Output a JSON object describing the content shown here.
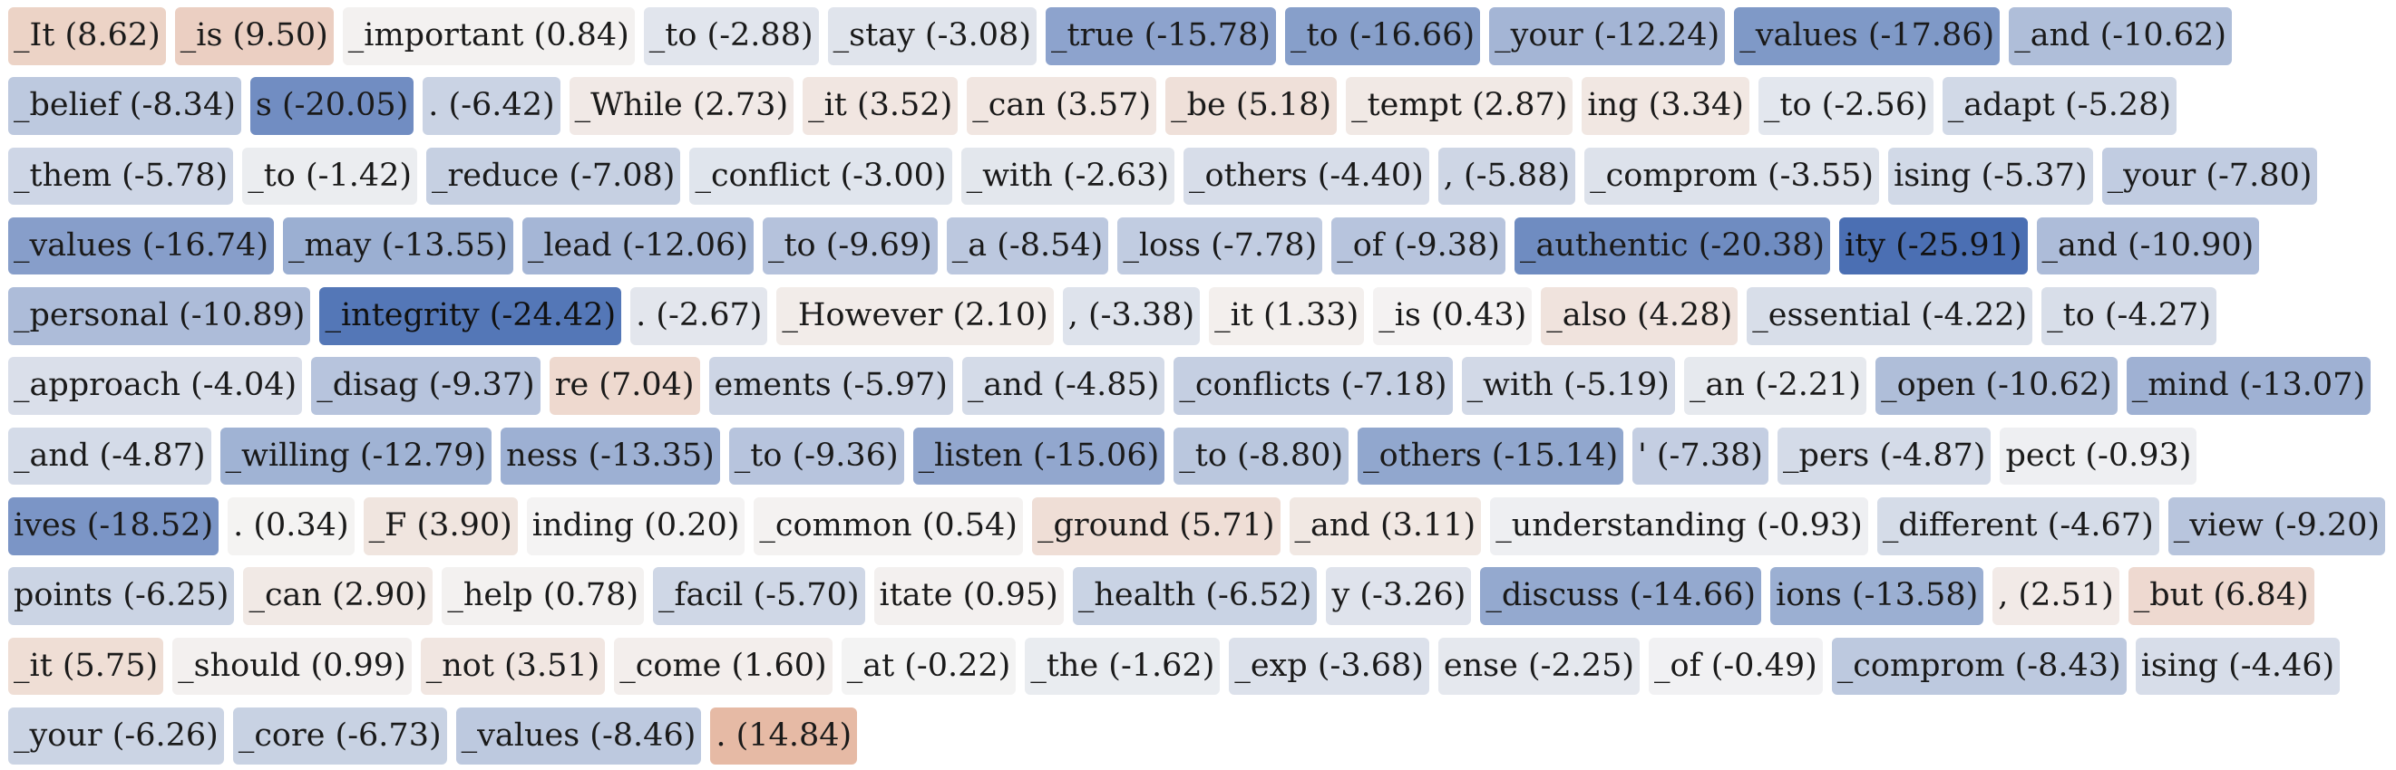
{
  "palette": {
    "neg_dark": "#4a6fb3",
    "pos_dark": "#dc8f6a",
    "neutral": "#f4f4f4",
    "text": "#1a1a1a",
    "color_range": 26
  },
  "tokens": [
    {
      "text": "_It (8.62)",
      "score": 8.62
    },
    {
      "text": "_is (9.50)",
      "score": 9.5
    },
    {
      "text": "_important (0.84)",
      "score": 0.84
    },
    {
      "text": "_to (-2.88)",
      "score": -2.88
    },
    {
      "text": "_stay (-3.08)",
      "score": -3.08
    },
    {
      "text": "_true (-15.78)",
      "score": -15.78
    },
    {
      "text": "_to (-16.66)",
      "score": -16.66
    },
    {
      "text": "_your (-12.24)",
      "score": -12.24
    },
    {
      "text": "_values (-17.86)",
      "score": -17.86
    },
    {
      "text": "_and (-10.62)",
      "score": -10.62
    },
    {
      "text": "_belief (-8.34)",
      "score": -8.34
    },
    {
      "text": "s (-20.05)",
      "score": -20.05
    },
    {
      "text": ". (-6.42)",
      "score": -6.42
    },
    {
      "text": "_While (2.73)",
      "score": 2.73
    },
    {
      "text": "_it (3.52)",
      "score": 3.52
    },
    {
      "text": "_can (3.57)",
      "score": 3.57
    },
    {
      "text": "_be (5.18)",
      "score": 5.18
    },
    {
      "text": "_tempt (2.87)",
      "score": 2.87
    },
    {
      "text": "ing (3.34)",
      "score": 3.34
    },
    {
      "text": "_to (-2.56)",
      "score": -2.56
    },
    {
      "text": "_adapt (-5.28)",
      "score": -5.28
    },
    {
      "text": "_them (-5.78)",
      "score": -5.78
    },
    {
      "text": "_to (-1.42)",
      "score": -1.42
    },
    {
      "text": "_reduce (-7.08)",
      "score": -7.08
    },
    {
      "text": "_conflict (-3.00)",
      "score": -3.0
    },
    {
      "text": "_with (-2.63)",
      "score": -2.63
    },
    {
      "text": "_others (-4.40)",
      "score": -4.4
    },
    {
      "text": ", (-5.88)",
      "score": -5.88
    },
    {
      "text": "_comprom (-3.55)",
      "score": -3.55
    },
    {
      "text": "ising (-5.37)",
      "score": -5.37
    },
    {
      "text": "_your (-7.80)",
      "score": -7.8
    },
    {
      "text": "_values (-16.74)",
      "score": -16.74
    },
    {
      "text": "_may (-13.55)",
      "score": -13.55
    },
    {
      "text": "_lead (-12.06)",
      "score": -12.06
    },
    {
      "text": "_to (-9.69)",
      "score": -9.69
    },
    {
      "text": "_a (-8.54)",
      "score": -8.54
    },
    {
      "text": "_loss (-7.78)",
      "score": -7.78
    },
    {
      "text": "_of (-9.38)",
      "score": -9.38
    },
    {
      "text": "_authentic (-20.38)",
      "score": -20.38
    },
    {
      "text": "ity (-25.91)",
      "score": -25.91
    },
    {
      "text": "_and (-10.90)",
      "score": -10.9
    },
    {
      "text": "_personal (-10.89)",
      "score": -10.89
    },
    {
      "text": "_integrity (-24.42)",
      "score": -24.42
    },
    {
      "text": ". (-2.67)",
      "score": -2.67
    },
    {
      "text": "_However (2.10)",
      "score": 2.1
    },
    {
      "text": ", (-3.38)",
      "score": -3.38
    },
    {
      "text": "_it (1.33)",
      "score": 1.33
    },
    {
      "text": "_is (0.43)",
      "score": 0.43
    },
    {
      "text": "_also (4.28)",
      "score": 4.28
    },
    {
      "text": "_essential (-4.22)",
      "score": -4.22
    },
    {
      "text": "_to (-4.27)",
      "score": -4.27
    },
    {
      "text": "_approach (-4.04)",
      "score": -4.04
    },
    {
      "text": "_disag (-9.37)",
      "score": -9.37
    },
    {
      "text": "re (7.04)",
      "score": 7.04
    },
    {
      "text": "ements (-5.97)",
      "score": -5.97
    },
    {
      "text": "_and (-4.85)",
      "score": -4.85
    },
    {
      "text": "_conflicts (-7.18)",
      "score": -7.18
    },
    {
      "text": "_with (-5.19)",
      "score": -5.19
    },
    {
      "text": "_an (-2.21)",
      "score": -2.21
    },
    {
      "text": "_open (-10.62)",
      "score": -10.62
    },
    {
      "text": "_mind (-13.07)",
      "score": -13.07
    },
    {
      "text": "_and (-4.87)",
      "score": -4.87
    },
    {
      "text": "_willing (-12.79)",
      "score": -12.79
    },
    {
      "text": "ness (-13.35)",
      "score": -13.35
    },
    {
      "text": "_to (-9.36)",
      "score": -9.36
    },
    {
      "text": "_listen (-15.06)",
      "score": -15.06
    },
    {
      "text": "_to (-8.80)",
      "score": -8.8
    },
    {
      "text": "_others (-15.14)",
      "score": -15.14
    },
    {
      "text": "' (-7.38)",
      "score": -7.38
    },
    {
      "text": "_pers (-4.87)",
      "score": -4.87
    },
    {
      "text": "pect (-0.93)",
      "score": -0.93
    },
    {
      "text": "ives (-18.52)",
      "score": -18.52
    },
    {
      "text": ". (0.34)",
      "score": 0.34
    },
    {
      "text": "_F (3.90)",
      "score": 3.9
    },
    {
      "text": "inding (0.20)",
      "score": 0.2
    },
    {
      "text": "_common (0.54)",
      "score": 0.54
    },
    {
      "text": "_ground (5.71)",
      "score": 5.71
    },
    {
      "text": "_and (3.11)",
      "score": 3.11
    },
    {
      "text": "_understanding (-0.93)",
      "score": -0.93
    },
    {
      "text": "_different (-4.67)",
      "score": -4.67
    },
    {
      "text": "_view (-9.20)",
      "score": -9.2
    },
    {
      "text": "points (-6.25)",
      "score": -6.25
    },
    {
      "text": "_can (2.90)",
      "score": 2.9
    },
    {
      "text": "_help (0.78)",
      "score": 0.78
    },
    {
      "text": "_facil (-5.70)",
      "score": -5.7
    },
    {
      "text": "itate (0.95)",
      "score": 0.95
    },
    {
      "text": "_health (-6.52)",
      "score": -6.52
    },
    {
      "text": "y (-3.26)",
      "score": -3.26
    },
    {
      "text": "_discuss (-14.66)",
      "score": -14.66
    },
    {
      "text": "ions (-13.58)",
      "score": -13.58
    },
    {
      "text": ", (2.51)",
      "score": 2.51
    },
    {
      "text": "_but (6.84)",
      "score": 6.84
    },
    {
      "text": "_it (5.75)",
      "score": 5.75
    },
    {
      "text": "_should (0.99)",
      "score": 0.99
    },
    {
      "text": "_not (3.51)",
      "score": 3.51
    },
    {
      "text": "_come (1.60)",
      "score": 1.6
    },
    {
      "text": "_at (-0.22)",
      "score": -0.22
    },
    {
      "text": "_the (-1.62)",
      "score": -1.62
    },
    {
      "text": "_exp (-3.68)",
      "score": -3.68
    },
    {
      "text": "ense (-2.25)",
      "score": -2.25
    },
    {
      "text": "_of (-0.49)",
      "score": -0.49
    },
    {
      "text": "_comprom (-8.43)",
      "score": -8.43
    },
    {
      "text": "ising (-4.46)",
      "score": -4.46
    },
    {
      "text": "_your (-6.26)",
      "score": -6.26
    },
    {
      "text": "_core (-6.73)",
      "score": -6.73
    },
    {
      "text": "_values (-8.46)",
      "score": -8.46
    },
    {
      "text": ". (14.84)",
      "score": 14.84
    }
  ]
}
